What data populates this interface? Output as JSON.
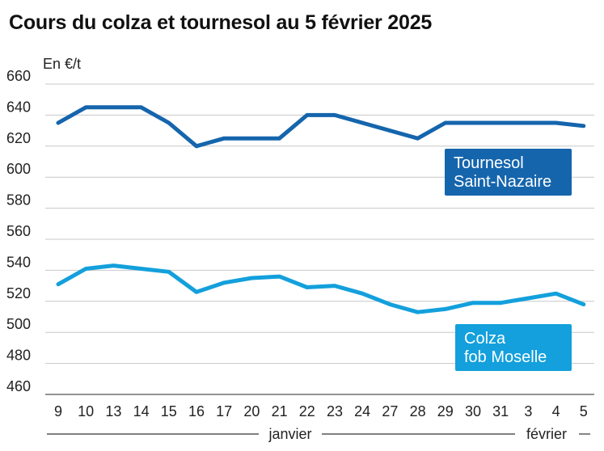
{
  "title": "Cours du colza et tournesol au 5 février 2025",
  "unit": "En €/t",
  "colors": {
    "tournesol": "#1565ad",
    "colza": "#13a0dc",
    "grid": "#c8c8c8",
    "axis": "#555555"
  },
  "chart_data": {
    "type": "line",
    "title": "Cours du colza et tournesol au 5 février 2025",
    "ylabel": "En €/t",
    "xlabel": "",
    "ylim": [
      460,
      660
    ],
    "yticks": [
      460,
      480,
      500,
      520,
      540,
      560,
      580,
      600,
      620,
      640,
      660
    ],
    "grid": true,
    "categories": [
      "9",
      "10",
      "13",
      "14",
      "15",
      "16",
      "17",
      "20",
      "21",
      "22",
      "23",
      "24",
      "27",
      "28",
      "29",
      "30",
      "31",
      "3",
      "4",
      "5"
    ],
    "months": [
      {
        "label": "janvier",
        "from": 0,
        "to": 16
      },
      {
        "label": "février",
        "from": 17,
        "to": 19
      }
    ],
    "series": [
      {
        "name": "Tournesol\nSaint-Nazaire",
        "label_lines": [
          "Tournesol",
          "Saint-Nazaire"
        ],
        "values": [
          635,
          645,
          645,
          645,
          635,
          620,
          625,
          625,
          625,
          640,
          640,
          635,
          630,
          625,
          635,
          635,
          635,
          635,
          635,
          633
        ]
      },
      {
        "name": "Colza\nfob Moselle",
        "label_lines": [
          "Colza",
          "fob Moselle"
        ],
        "values": [
          531,
          541,
          543,
          541,
          539,
          526,
          532,
          535,
          536,
          529,
          530,
          525,
          518,
          513,
          515,
          519,
          519,
          522,
          525,
          518
        ]
      }
    ]
  }
}
